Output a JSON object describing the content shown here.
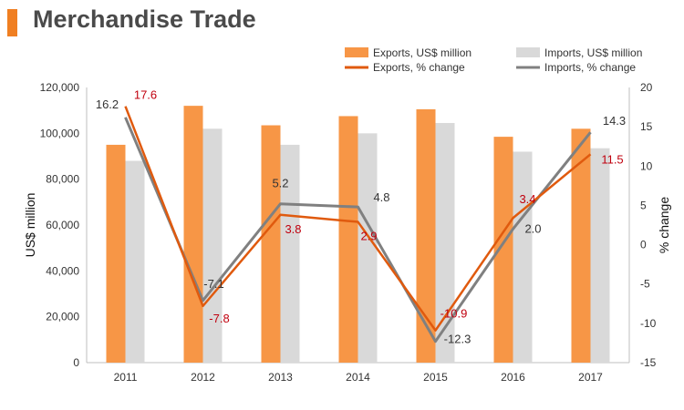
{
  "header": {
    "title": "Merchandise Trade"
  },
  "colors": {
    "accent": "#f07f22",
    "exports_bar": "#f79646",
    "imports_bar": "#d9d9d9",
    "exports_line": "#e05a0e",
    "imports_line": "#808080",
    "exports_label": "#c0000e",
    "imports_label": "#333333"
  },
  "chart_data": {
    "type": "bar",
    "categories": [
      "2011",
      "2012",
      "2013",
      "2014",
      "2015",
      "2016",
      "2017"
    ],
    "series": [
      {
        "name": "Exports, US$ million",
        "type": "bar",
        "axis": "left",
        "values": [
          95000,
          112000,
          103500,
          107500,
          110500,
          98500,
          102000
        ]
      },
      {
        "name": "Imports, US$ million",
        "type": "bar",
        "axis": "left",
        "values": [
          88000,
          102000,
          95000,
          100000,
          104500,
          92000,
          93500
        ]
      },
      {
        "name": "Exports, % change",
        "type": "line",
        "axis": "right",
        "values": [
          17.6,
          -7.8,
          3.8,
          2.9,
          -10.9,
          3.4,
          11.5
        ],
        "labels": [
          "17.6",
          "-7.8",
          "3.8",
          "2.9",
          "-10.9",
          "3.4",
          "11.5"
        ]
      },
      {
        "name": "Imports, % change",
        "type": "line",
        "axis": "right",
        "values": [
          16.2,
          -7.1,
          5.2,
          4.8,
          -12.3,
          2.0,
          14.3
        ],
        "labels": [
          "16.2",
          "-7.1",
          "5.2",
          "4.8",
          "-12.3",
          "2.0",
          "14.3"
        ]
      }
    ],
    "ylabel": "US$ million",
    "y2label": "% change",
    "ylim": [
      0,
      120000
    ],
    "y2lim": [
      -15,
      20
    ],
    "yticks": [
      "0",
      "20,000",
      "40,000",
      "60,000",
      "80,000",
      "100,000",
      "120,000"
    ],
    "y2ticks": [
      "-15",
      "-10",
      "-5",
      "0",
      "5",
      "10",
      "15",
      "20"
    ],
    "grid": false,
    "legend_position": "top-right"
  }
}
